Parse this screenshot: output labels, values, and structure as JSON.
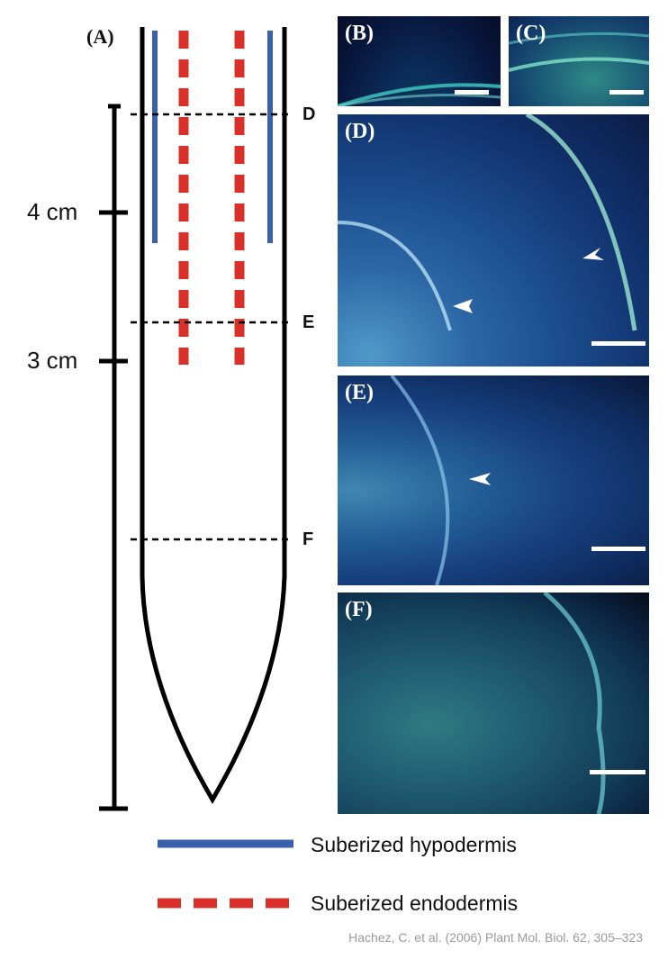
{
  "panel_a": {
    "label": "(A)"
  },
  "scale_marks": [
    {
      "label": "4 cm"
    },
    {
      "label": "3 cm"
    }
  ],
  "cut_lines": [
    {
      "label": "D"
    },
    {
      "label": "E"
    },
    {
      "label": "F"
    }
  ],
  "panels": [
    {
      "label": "(B)"
    },
    {
      "label": "(C)"
    },
    {
      "label": "(D)"
    },
    {
      "label": "(E)"
    },
    {
      "label": "(F)"
    }
  ],
  "legend": {
    "hypodermis": {
      "label": "Suberized hypodermis",
      "color": "#3a5fad"
    },
    "endodermis": {
      "label": "Suberized endodermis",
      "color": "#d9302a"
    }
  },
  "citation": "Hachez, C. et al. (2006) Plant Mol. Biol. 62, 305–323"
}
